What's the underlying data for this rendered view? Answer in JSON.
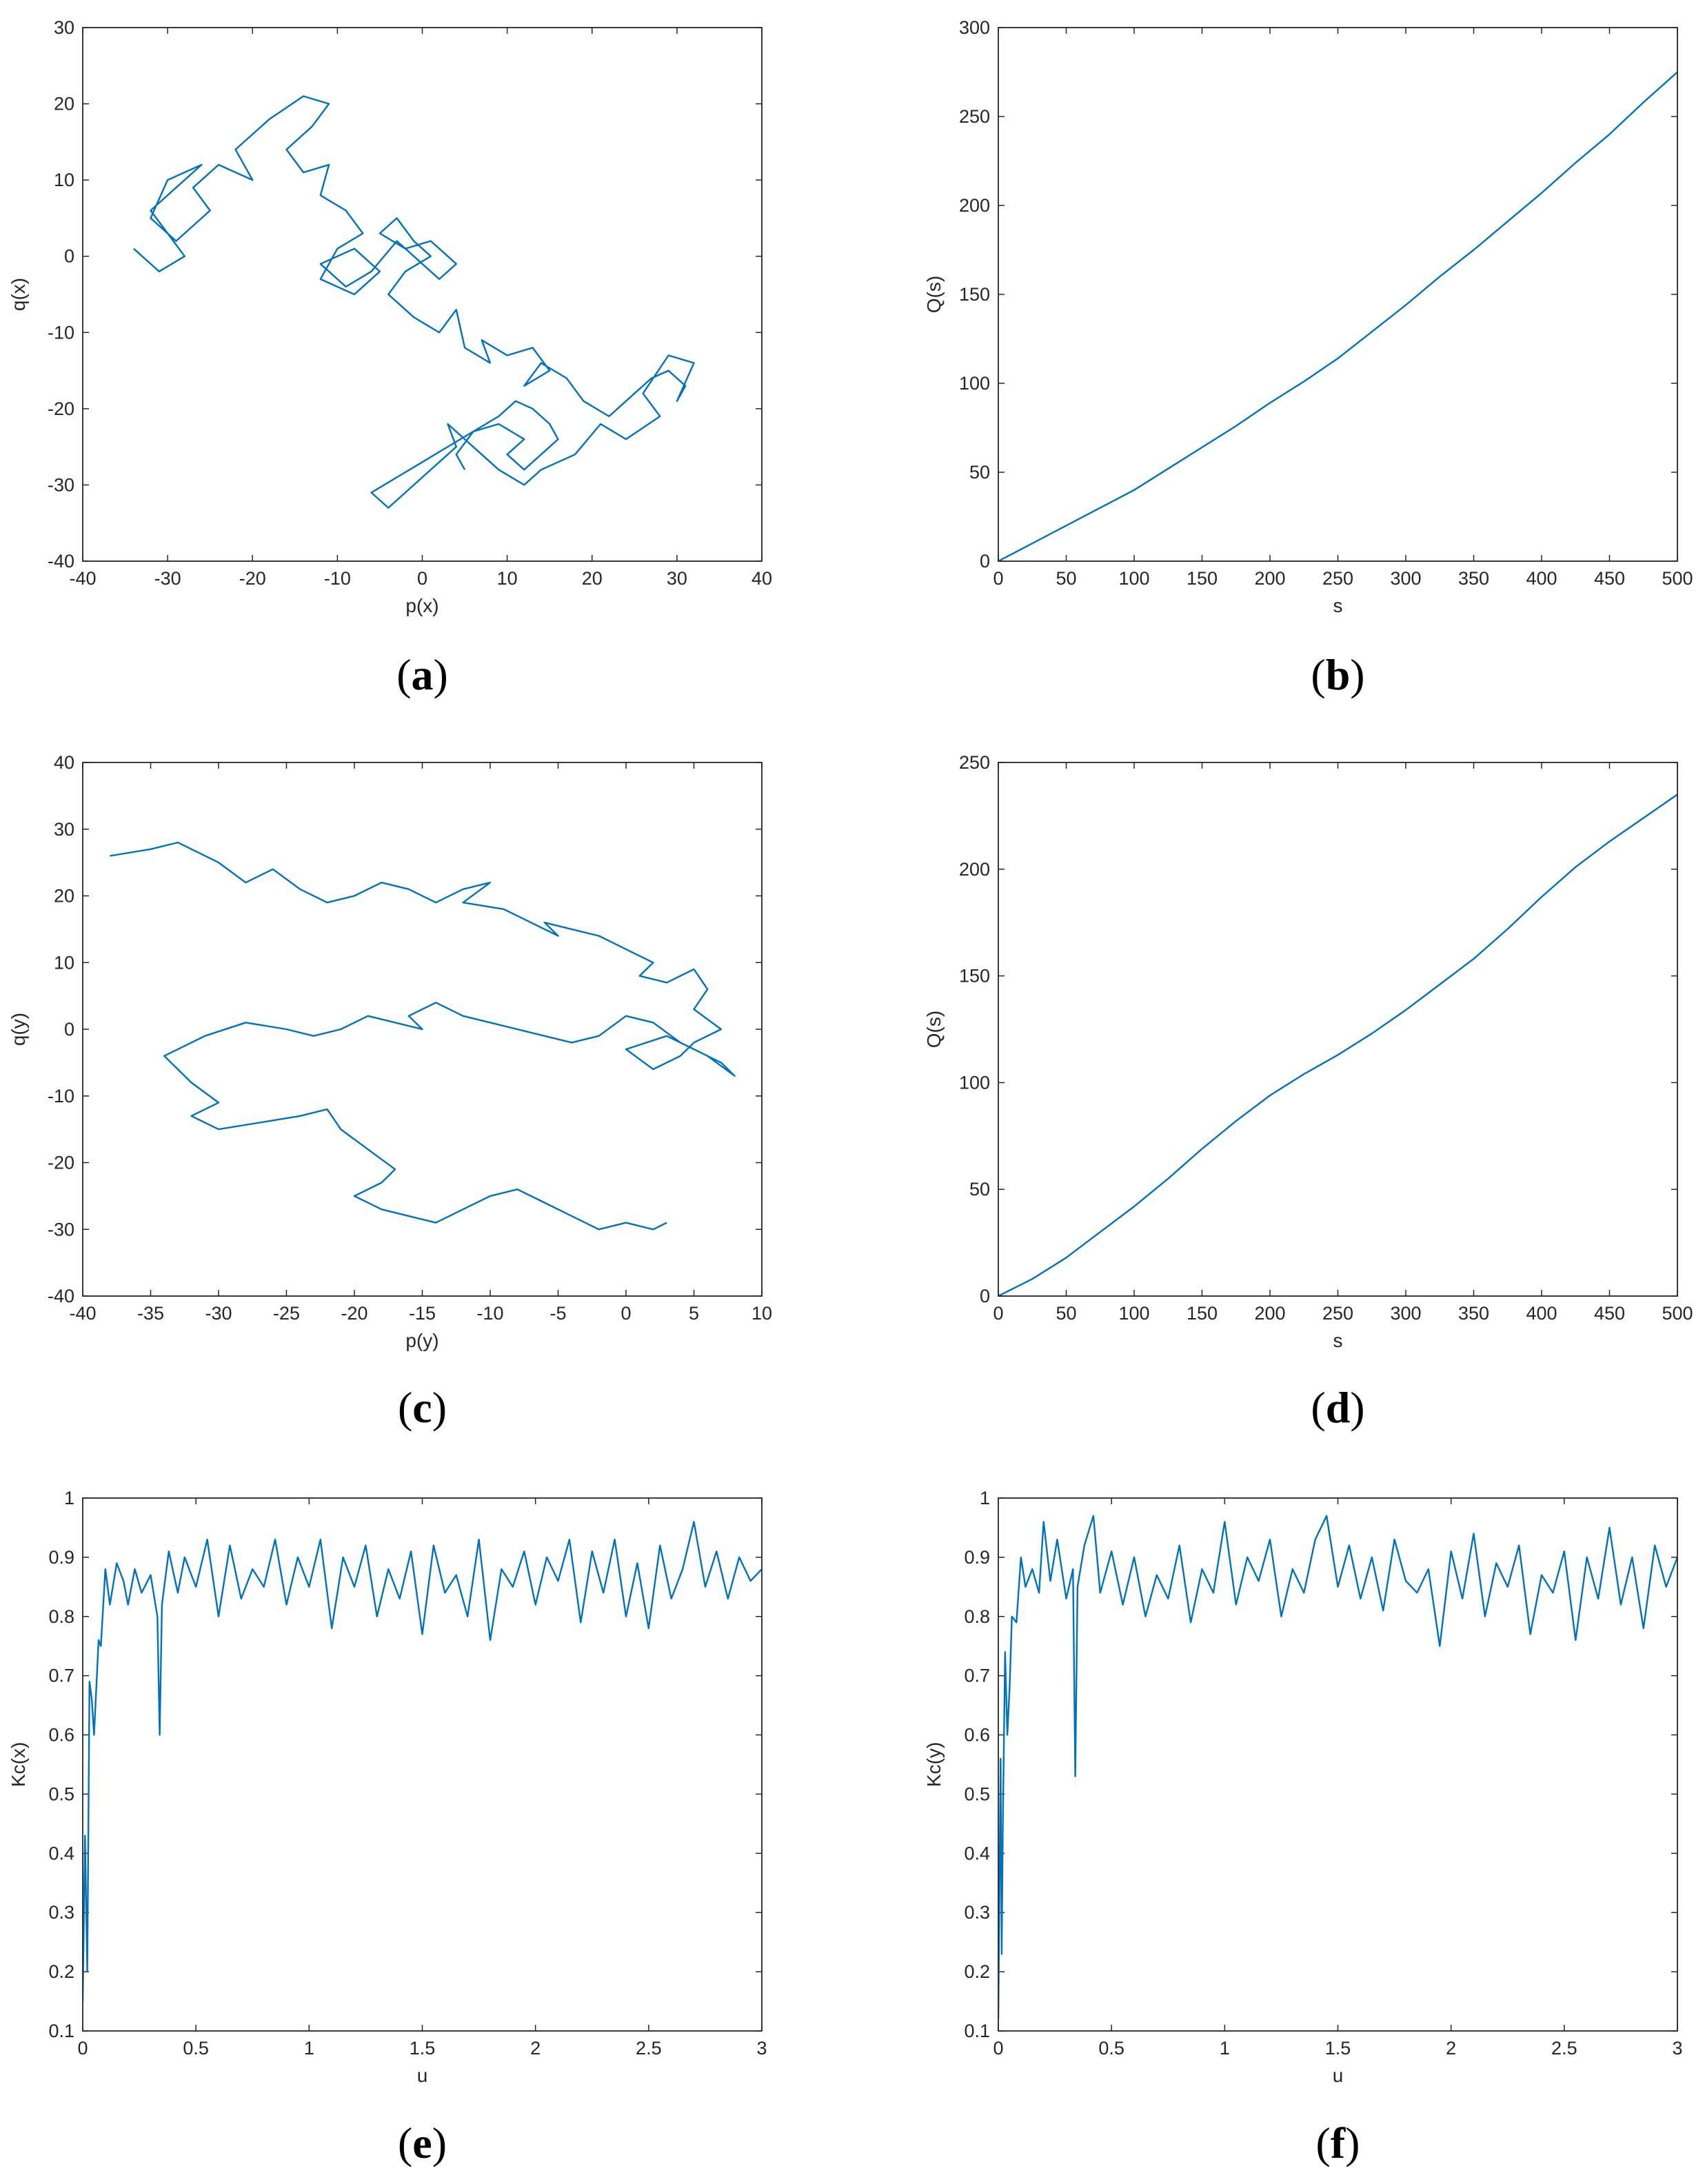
{
  "figure": {
    "line_color": "#0072BD",
    "axis_color": "#262626"
  },
  "chart_data": [
    {
      "panel": "a",
      "caption": "(a)",
      "type": "line",
      "subtype": "random-walk-trajectory",
      "xlabel": "p(x)",
      "ylabel": "q(x)",
      "xlim": [
        -40,
        40
      ],
      "ylim": [
        -40,
        30
      ],
      "xticks": [
        -40,
        -30,
        -20,
        -10,
        0,
        10,
        20,
        30,
        40
      ],
      "yticks": [
        -40,
        -30,
        -20,
        -10,
        0,
        10,
        20,
        30
      ],
      "x": [
        -34,
        -31,
        -28,
        -30,
        -32,
        -29,
        -26,
        -30,
        -32,
        -29,
        -25,
        -27,
        -24,
        -20,
        -22,
        -18,
        -14,
        -11,
        -13,
        -16,
        -14,
        -11,
        -12,
        -9,
        -7,
        -10,
        -12,
        -8,
        -5,
        -8,
        -12,
        -9,
        -6,
        -3,
        -1,
        2,
        4,
        1,
        -2,
        -5,
        -3,
        -1,
        1,
        -2,
        -4,
        -1,
        2,
        4,
        5,
        8,
        7,
        10,
        13,
        15,
        12,
        14,
        17,
        19,
        22,
        25,
        27,
        29,
        31,
        30,
        32,
        29,
        26,
        28,
        24,
        21,
        18,
        16,
        14,
        12,
        9,
        7,
        5,
        3,
        4,
        2,
        0,
        -2,
        -4,
        -6,
        -3,
        0,
        3,
        6,
        9,
        11,
        13,
        15,
        16,
        14,
        12,
        10,
        12,
        9,
        6,
        4,
        5
      ],
      "y": [
        1,
        -2,
        0,
        3,
        6,
        9,
        12,
        10,
        5,
        2,
        6,
        9,
        12,
        10,
        14,
        18,
        21,
        20,
        17,
        14,
        11,
        12,
        8,
        6,
        3,
        1,
        -3,
        -5,
        -2,
        1,
        -1,
        -4,
        -2,
        2,
        0,
        -3,
        -1,
        2,
        1,
        3,
        5,
        2,
        0,
        -2,
        -5,
        -8,
        -10,
        -7,
        -12,
        -14,
        -11,
        -13,
        -12,
        -15,
        -17,
        -14,
        -16,
        -19,
        -21,
        -18,
        -16,
        -15,
        -17,
        -19,
        -14,
        -13,
        -18,
        -21,
        -24,
        -22,
        -26,
        -27,
        -28,
        -30,
        -28,
        -26,
        -24,
        -22,
        -25,
        -27,
        -29,
        -31,
        -33,
        -31,
        -29,
        -27,
        -25,
        -23,
        -21,
        -19,
        -20,
        -22,
        -24,
        -26,
        -28,
        -26,
        -24,
        -22,
        -23,
        -26,
        -28
      ]
    },
    {
      "panel": "b",
      "caption": "(b)",
      "type": "line",
      "xlabel": "s",
      "ylabel": "Q(s)",
      "xlim": [
        0,
        500
      ],
      "ylim": [
        0,
        300
      ],
      "xticks": [
        0,
        50,
        100,
        150,
        200,
        250,
        300,
        350,
        400,
        450,
        500
      ],
      "yticks": [
        0,
        50,
        100,
        150,
        200,
        250,
        300
      ],
      "x": [
        0,
        25,
        50,
        75,
        100,
        125,
        150,
        175,
        200,
        225,
        250,
        275,
        300,
        325,
        350,
        375,
        400,
        425,
        450,
        475,
        500
      ],
      "y": [
        0,
        10,
        20,
        30,
        40,
        52,
        64,
        76,
        89,
        101,
        114,
        129,
        144,
        160,
        175,
        191,
        207,
        224,
        240,
        258,
        275
      ]
    },
    {
      "panel": "c",
      "caption": "(c)",
      "type": "line",
      "subtype": "random-walk-trajectory",
      "xlabel": "p(y)",
      "ylabel": "q(y)",
      "xlim": [
        -40,
        10
      ],
      "ylim": [
        -40,
        40
      ],
      "xticks": [
        -40,
        -35,
        -30,
        -25,
        -20,
        -15,
        -10,
        -5,
        0,
        5,
        10
      ],
      "yticks": [
        -40,
        -30,
        -20,
        -10,
        0,
        10,
        20,
        30,
        40
      ],
      "x": [
        -38,
        -35,
        -33,
        -30,
        -28,
        -26,
        -24,
        -22,
        -20,
        -18,
        -16,
        -14,
        -12,
        -10,
        -12,
        -9,
        -7,
        -5,
        -6,
        -4,
        -2,
        0,
        2,
        1,
        3,
        5,
        6,
        5,
        7,
        5,
        4,
        2,
        0,
        3,
        5,
        7,
        8,
        6,
        4,
        2,
        0,
        -2,
        -4,
        -6,
        -8,
        -10,
        -12,
        -14,
        -16,
        -15,
        -17,
        -19,
        -21,
        -23,
        -25,
        -28,
        -31,
        -34,
        -32,
        -30,
        -32,
        -30,
        -27,
        -24,
        -22,
        -21,
        -19,
        -17,
        -18,
        -20,
        -18,
        -16,
        -14,
        -12,
        -10,
        -8,
        -6,
        -4,
        -2,
        0,
        2,
        3
      ],
      "y": [
        26,
        27,
        28,
        25,
        22,
        24,
        21,
        19,
        20,
        22,
        21,
        19,
        21,
        22,
        19,
        18,
        16,
        14,
        16,
        15,
        14,
        12,
        10,
        8,
        7,
        9,
        6,
        3,
        0,
        -2,
        -4,
        -6,
        -3,
        -1,
        -3,
        -5,
        -7,
        -4,
        -2,
        1,
        2,
        -1,
        -2,
        -1,
        0,
        1,
        2,
        4,
        2,
        0,
        1,
        2,
        0,
        -1,
        0,
        1,
        -1,
        -4,
        -8,
        -11,
        -13,
        -15,
        -14,
        -13,
        -12,
        -15,
        -18,
        -21,
        -23,
        -25,
        -27,
        -28,
        -29,
        -27,
        -25,
        -24,
        -26,
        -28,
        -30,
        -29,
        -30,
        -29
      ]
    },
    {
      "panel": "d",
      "caption": "(d)",
      "type": "line",
      "xlabel": "s",
      "ylabel": "Q(s)",
      "xlim": [
        0,
        500
      ],
      "ylim": [
        0,
        250
      ],
      "xticks": [
        0,
        50,
        100,
        150,
        200,
        250,
        300,
        350,
        400,
        450,
        500
      ],
      "yticks": [
        0,
        50,
        100,
        150,
        200,
        250
      ],
      "x": [
        0,
        25,
        50,
        75,
        100,
        125,
        150,
        175,
        200,
        225,
        250,
        275,
        300,
        325,
        350,
        375,
        400,
        425,
        450,
        475,
        500
      ],
      "y": [
        0,
        8,
        18,
        30,
        42,
        55,
        69,
        82,
        94,
        104,
        113,
        123,
        134,
        146,
        158,
        172,
        187,
        201,
        213,
        224,
        235
      ]
    },
    {
      "panel": "e",
      "caption": "(e)",
      "type": "line",
      "xlabel": "u",
      "ylabel": "Kc(x)",
      "xlim": [
        0,
        3
      ],
      "ylim": [
        0.1,
        1
      ],
      "xticks": [
        0,
        0.5,
        1,
        1.5,
        2,
        2.5,
        3
      ],
      "xtick_labels": [
        "0",
        "0.5",
        "1",
        "1.5",
        "2",
        "2.5",
        "3"
      ],
      "yticks": [
        0.1,
        0.2,
        0.3,
        0.4,
        0.5,
        0.6,
        0.7,
        0.8,
        0.9,
        1
      ],
      "ytick_labels": [
        "0.1",
        "0.2",
        "0.3",
        "0.4",
        "0.5",
        "0.6",
        "0.7",
        "0.8",
        "0.9",
        "1"
      ],
      "x": [
        0,
        0.01,
        0.02,
        0.03,
        0.04,
        0.05,
        0.06,
        0.07,
        0.08,
        0.1,
        0.12,
        0.15,
        0.18,
        0.2,
        0.23,
        0.26,
        0.3,
        0.33,
        0.34,
        0.35,
        0.38,
        0.42,
        0.45,
        0.5,
        0.55,
        0.6,
        0.65,
        0.7,
        0.75,
        0.8,
        0.85,
        0.9,
        0.95,
        1,
        1.05,
        1.1,
        1.15,
        1.2,
        1.25,
        1.3,
        1.35,
        1.4,
        1.45,
        1.5,
        1.55,
        1.6,
        1.65,
        1.7,
        1.75,
        1.8,
        1.85,
        1.9,
        1.95,
        2,
        2.05,
        2.1,
        2.15,
        2.2,
        2.25,
        2.3,
        2.35,
        2.4,
        2.45,
        2.5,
        2.55,
        2.6,
        2.65,
        2.7,
        2.75,
        2.8,
        2.85,
        2.9,
        2.95,
        3
      ],
      "y": [
        0.15,
        0.43,
        0.2,
        0.69,
        0.66,
        0.6,
        0.68,
        0.76,
        0.75,
        0.88,
        0.82,
        0.89,
        0.86,
        0.82,
        0.88,
        0.84,
        0.87,
        0.8,
        0.6,
        0.82,
        0.91,
        0.84,
        0.9,
        0.85,
        0.93,
        0.8,
        0.92,
        0.83,
        0.88,
        0.85,
        0.93,
        0.82,
        0.9,
        0.85,
        0.93,
        0.78,
        0.9,
        0.85,
        0.92,
        0.8,
        0.88,
        0.83,
        0.91,
        0.77,
        0.92,
        0.84,
        0.87,
        0.8,
        0.93,
        0.76,
        0.88,
        0.85,
        0.91,
        0.82,
        0.9,
        0.86,
        0.93,
        0.79,
        0.91,
        0.84,
        0.93,
        0.8,
        0.89,
        0.78,
        0.92,
        0.83,
        0.88,
        0.96,
        0.85,
        0.91,
        0.83,
        0.9,
        0.86,
        0.88
      ]
    },
    {
      "panel": "f",
      "caption": "(f)",
      "type": "line",
      "xlabel": "u",
      "ylabel": "Kc(y)",
      "xlim": [
        0,
        3
      ],
      "ylim": [
        0.1,
        1
      ],
      "xticks": [
        0,
        0.5,
        1,
        1.5,
        2,
        2.5,
        3
      ],
      "xtick_labels": [
        "0",
        "0.5",
        "1",
        "1.5",
        "2",
        "2.5",
        "3"
      ],
      "yticks": [
        0.1,
        0.2,
        0.3,
        0.4,
        0.5,
        0.6,
        0.7,
        0.8,
        0.9,
        1
      ],
      "ytick_labels": [
        "0.1",
        "0.2",
        "0.3",
        "0.4",
        "0.5",
        "0.6",
        "0.7",
        "0.8",
        "0.9",
        "1"
      ],
      "x": [
        0,
        0.01,
        0.015,
        0.02,
        0.03,
        0.04,
        0.05,
        0.06,
        0.08,
        0.1,
        0.12,
        0.15,
        0.18,
        0.2,
        0.23,
        0.26,
        0.3,
        0.33,
        0.34,
        0.35,
        0.38,
        0.42,
        0.45,
        0.5,
        0.55,
        0.6,
        0.65,
        0.7,
        0.75,
        0.8,
        0.85,
        0.9,
        0.95,
        1,
        1.05,
        1.1,
        1.15,
        1.2,
        1.25,
        1.3,
        1.35,
        1.4,
        1.45,
        1.5,
        1.55,
        1.6,
        1.65,
        1.7,
        1.75,
        1.8,
        1.85,
        1.9,
        1.95,
        2,
        2.05,
        2.1,
        2.15,
        2.2,
        2.25,
        2.3,
        2.35,
        2.4,
        2.45,
        2.5,
        2.55,
        2.6,
        2.65,
        2.7,
        2.75,
        2.8,
        2.85,
        2.9,
        2.95,
        3
      ],
      "y": [
        0.12,
        0.56,
        0.23,
        0.45,
        0.74,
        0.6,
        0.68,
        0.8,
        0.79,
        0.9,
        0.85,
        0.88,
        0.84,
        0.96,
        0.86,
        0.93,
        0.83,
        0.88,
        0.53,
        0.85,
        0.92,
        0.97,
        0.84,
        0.91,
        0.82,
        0.9,
        0.8,
        0.87,
        0.83,
        0.92,
        0.79,
        0.88,
        0.84,
        0.96,
        0.82,
        0.9,
        0.86,
        0.93,
        0.8,
        0.88,
        0.84,
        0.93,
        0.97,
        0.85,
        0.92,
        0.83,
        0.9,
        0.81,
        0.93,
        0.86,
        0.84,
        0.88,
        0.75,
        0.91,
        0.83,
        0.94,
        0.8,
        0.89,
        0.85,
        0.92,
        0.77,
        0.87,
        0.84,
        0.91,
        0.76,
        0.9,
        0.83,
        0.95,
        0.82,
        0.9,
        0.78,
        0.92,
        0.85,
        0.9
      ]
    }
  ]
}
